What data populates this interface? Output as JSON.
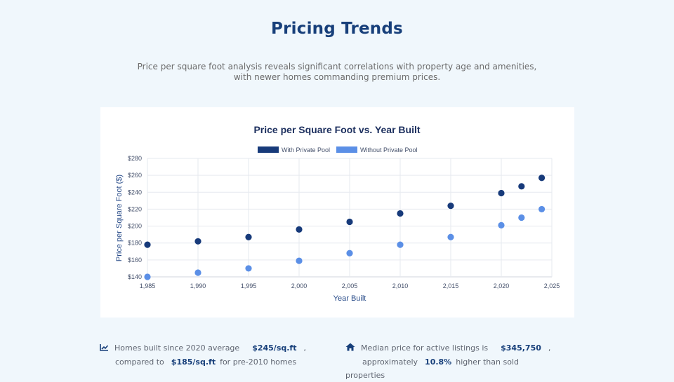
{
  "page": {
    "title": "Pricing Trends",
    "subtitle": "Price per square foot analysis reveals significant correlations with property age and amenities, with newer homes commanding premium prices."
  },
  "chart_data": {
    "type": "scatter",
    "title": "Price per Square Foot vs. Year Built",
    "xlabel": "Year Built",
    "ylabel": "Price per Square Foot ($)",
    "xlim": [
      1985,
      2025
    ],
    "ylim": [
      140,
      280
    ],
    "x_ticks": [
      "1,985",
      "1,990",
      "1,995",
      "2,000",
      "2,005",
      "2,010",
      "2,015",
      "2,020",
      "2,025"
    ],
    "y_ticks": [
      "$140",
      "$160",
      "$180",
      "$200",
      "$220",
      "$240",
      "$260",
      "$280"
    ],
    "legend_position": "top-center",
    "grid": true,
    "series": [
      {
        "name": "With Private Pool",
        "color": "#173a7a",
        "points": [
          [
            1985,
            178
          ],
          [
            1990,
            182
          ],
          [
            1995,
            187
          ],
          [
            2000,
            196
          ],
          [
            2005,
            205
          ],
          [
            2010,
            215
          ],
          [
            2015,
            224
          ],
          [
            2020,
            239
          ],
          [
            2022,
            247
          ],
          [
            2024,
            257
          ]
        ]
      },
      {
        "name": "Without Private Pool",
        "color": "#5b8fe6",
        "points": [
          [
            1985,
            140
          ],
          [
            1990,
            145
          ],
          [
            1995,
            150
          ],
          [
            2000,
            159
          ],
          [
            2005,
            168
          ],
          [
            2010,
            178
          ],
          [
            2015,
            187
          ],
          [
            2020,
            201
          ],
          [
            2022,
            210
          ],
          [
            2024,
            220
          ]
        ]
      }
    ]
  },
  "stats": [
    {
      "icon": "chart-line-icon",
      "text_1": "Homes built since 2020 average",
      "highlight_1": "$245/sq.ft",
      "text_2": ",",
      "text_3": "compared to",
      "highlight_2": "$185/sq.ft",
      "text_4": "for pre-2010 homes"
    },
    {
      "icon": "home-icon",
      "text_1": "Median price for active listings is",
      "highlight_1": "$345,750",
      "text_2": ",",
      "text_3": "approximately",
      "highlight_2": "10.8%",
      "text_4": "higher than sold properties"
    }
  ]
}
